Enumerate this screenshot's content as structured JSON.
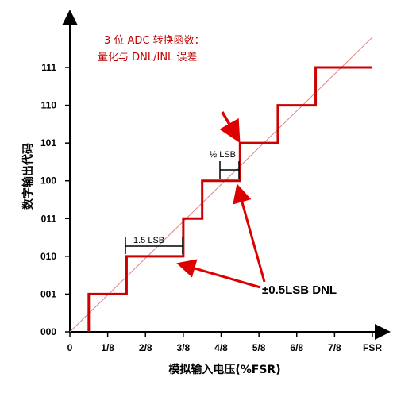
{
  "chart_data": {
    "type": "line",
    "title_lines": [
      "3 位 ADC 转换函数：",
      "量化与 DNL/INL 误差"
    ],
    "xlabel": "模拟输入电压(%FSR)",
    "ylabel": "数字输出代码",
    "x_tick_labels": [
      "0",
      "1/8",
      "2/8",
      "3/8",
      "4/8",
      "5/8",
      "6/8",
      "7/8",
      "FSR"
    ],
    "x_tick_values": [
      0,
      0.125,
      0.25,
      0.375,
      0.5,
      0.625,
      0.75,
      0.875,
      1.0
    ],
    "y_tick_labels": [
      "000",
      "001",
      "010",
      "011",
      "100",
      "101",
      "110",
      "111"
    ],
    "y_tick_values": [
      0,
      1,
      2,
      3,
      4,
      5,
      6,
      7
    ],
    "xlim": [
      0,
      1.05
    ],
    "ylim": [
      0,
      7.4
    ],
    "series": [
      {
        "color": "#cc0000",
        "kind": "step",
        "points": [
          [
            0.0625,
            0
          ],
          [
            0.0625,
            1
          ],
          [
            0.1875,
            1
          ],
          [
            0.1875,
            2
          ],
          [
            0.375,
            2
          ],
          [
            0.375,
            3
          ],
          [
            0.4375,
            3
          ],
          [
            0.4375,
            4
          ],
          [
            0.5625,
            4
          ],
          [
            0.5625,
            5
          ],
          [
            0.6875,
            5
          ],
          [
            0.6875,
            6
          ],
          [
            0.8125,
            6
          ],
          [
            0.8125,
            7
          ],
          [
            1.0,
            7
          ]
        ]
      },
      {
        "color": "#e08080",
        "kind": "ideal-line",
        "points": [
          [
            0,
            0
          ],
          [
            1.0,
            7.8
          ]
        ]
      }
    ],
    "annotations": {
      "lsb_1_5": "1.5 LSB",
      "lsb_half": "½ LSB",
      "dnl": "±0.5LSB DNL"
    }
  },
  "colors": {
    "step": "#cc0000",
    "ideal": "#e08080",
    "arrow": "#dd0000",
    "title": "#c00000"
  }
}
